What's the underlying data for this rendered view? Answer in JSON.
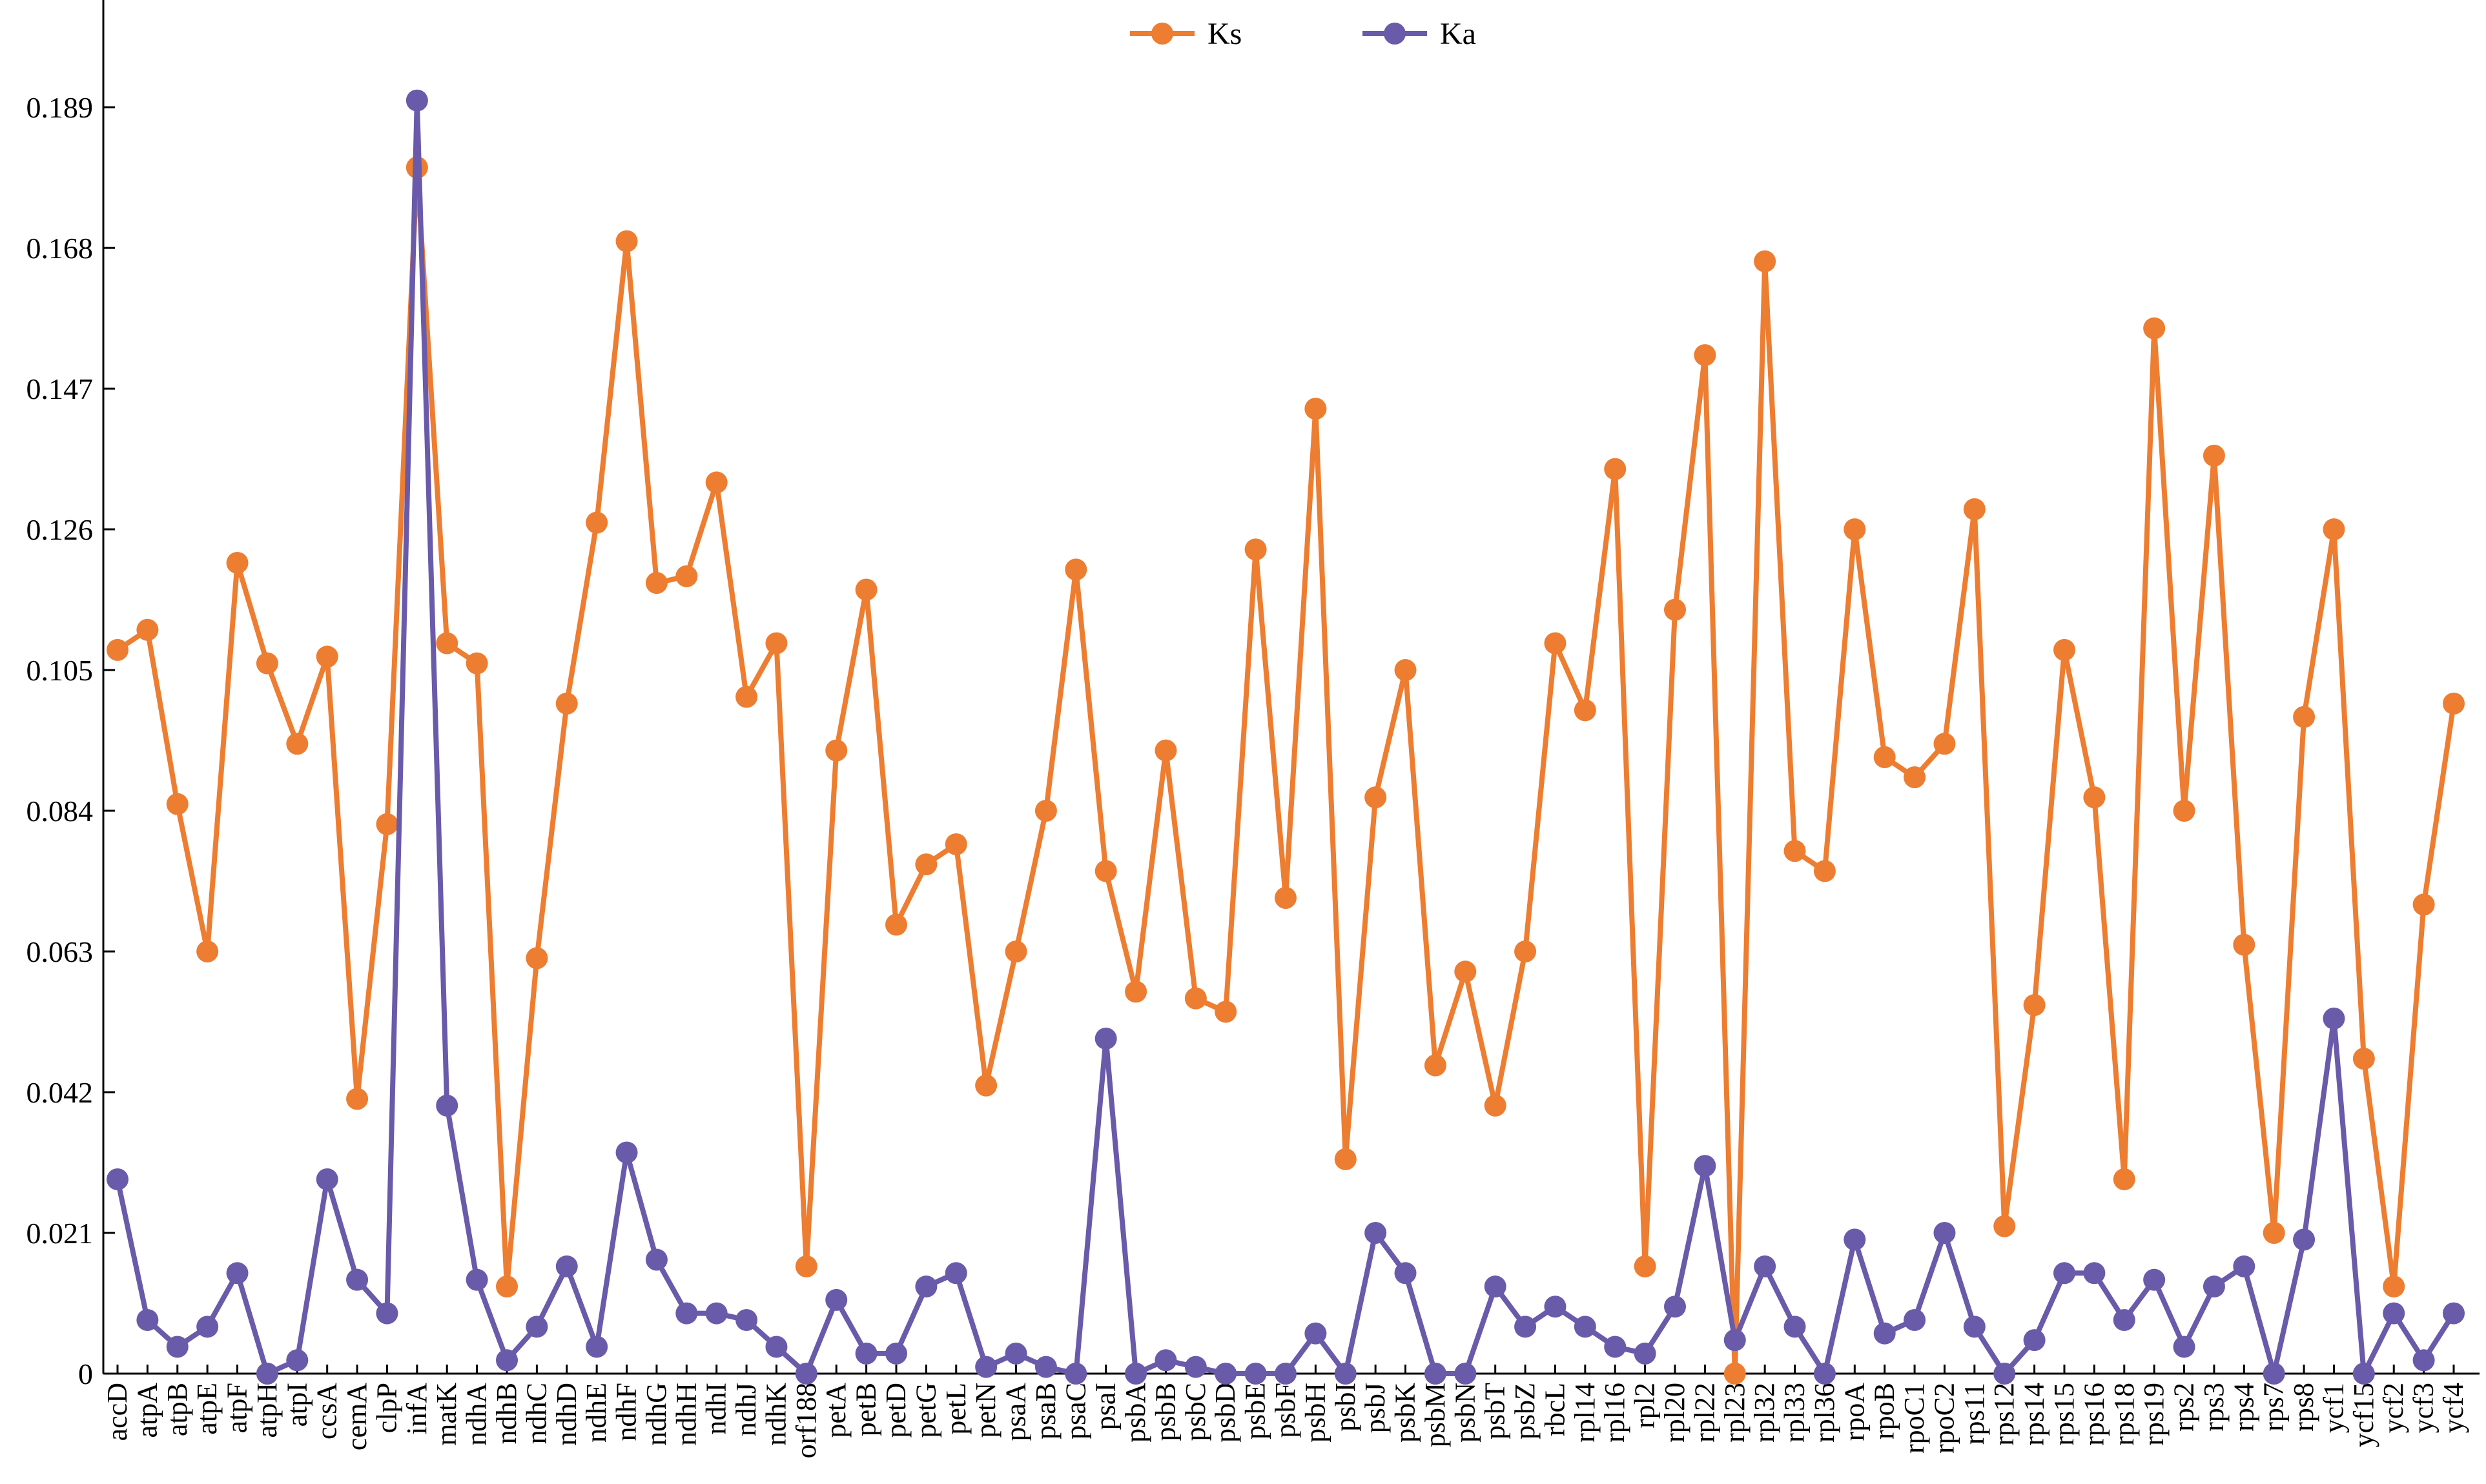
{
  "chart_data": {
    "type": "line",
    "title": "",
    "xlabel": "",
    "ylabel": "",
    "ylim": [
      0,
      0.205
    ],
    "yticks": [
      0,
      0.021,
      0.042,
      0.063,
      0.084,
      0.105,
      0.126,
      0.147,
      0.168,
      0.189
    ],
    "ytick_labels": [
      "0",
      "0.021",
      "0.042",
      "0.063",
      "0.084",
      "0.105",
      "0.126",
      "0.147",
      "0.168",
      "0.189"
    ],
    "legend_position": "top-center",
    "categories": [
      "accD",
      "atpA",
      "atpB",
      "atpE",
      "atpF",
      "atpH",
      "atpI",
      "ccsA",
      "cemA",
      "clpP",
      "infA",
      "matK",
      "ndhA",
      "ndhB",
      "ndhC",
      "ndhD",
      "ndhE",
      "ndhF",
      "ndhG",
      "ndhH",
      "ndhI",
      "ndhJ",
      "ndhK",
      "orf188",
      "petA",
      "petB",
      "petD",
      "petG",
      "petL",
      "petN",
      "psaA",
      "psaB",
      "psaC",
      "psaI",
      "psbA",
      "psbB",
      "psbC",
      "psbD",
      "psbE",
      "psbF",
      "psbH",
      "psbI",
      "psbJ",
      "psbK",
      "psbM",
      "psbN",
      "psbT",
      "psbZ",
      "rbcL",
      "rpl14",
      "rpl16",
      "rpl2",
      "rpl20",
      "rpl22",
      "rpl23",
      "rpl32",
      "rpl33",
      "rpl36",
      "rpoA",
      "rpoB",
      "rpoC1",
      "rpoC2",
      "rps11",
      "rps12",
      "rps14",
      "rps15",
      "rps16",
      "rps18",
      "rps19",
      "rps2",
      "rps3",
      "rps4",
      "rps7",
      "rps8",
      "ycf1",
      "ycf15",
      "ycf2",
      "ycf3",
      "ycf4"
    ],
    "series": [
      {
        "name": "Ks",
        "color": "#ED7D31",
        "values": [
          0.108,
          0.111,
          0.085,
          0.063,
          0.121,
          0.106,
          0.094,
          0.107,
          0.041,
          0.082,
          0.18,
          0.109,
          0.106,
          0.013,
          0.062,
          0.1,
          0.127,
          0.169,
          0.118,
          0.119,
          0.133,
          0.101,
          0.109,
          0.016,
          0.093,
          0.117,
          0.067,
          0.076,
          0.079,
          0.043,
          0.063,
          0.084,
          0.12,
          0.075,
          0.057,
          0.093,
          0.056,
          0.054,
          0.123,
          0.071,
          0.144,
          0.032,
          0.086,
          0.105,
          0.046,
          0.06,
          0.04,
          0.063,
          0.109,
          0.099,
          0.135,
          0.016,
          0.114,
          0.152,
          0.0,
          0.166,
          0.078,
          0.075,
          0.126,
          0.092,
          0.089,
          0.094,
          0.129,
          0.022,
          0.055,
          0.108,
          0.086,
          0.029,
          0.156,
          0.084,
          0.137,
          0.064,
          0.021,
          0.098,
          0.126,
          0.047,
          0.013,
          0.07,
          0.1
        ]
      },
      {
        "name": "Ka",
        "color": "#6A5AAA",
        "values": [
          0.029,
          0.008,
          0.004,
          0.007,
          0.015,
          0.0,
          0.002,
          0.029,
          0.014,
          0.009,
          0.19,
          0.04,
          0.014,
          0.002,
          0.007,
          0.016,
          0.004,
          0.033,
          0.017,
          0.009,
          0.009,
          0.008,
          0.004,
          0.0,
          0.011,
          0.003,
          0.003,
          0.013,
          0.015,
          0.001,
          0.003,
          0.001,
          0.0,
          0.05,
          0.0,
          0.002,
          0.001,
          0.0,
          0.0,
          0.0,
          0.006,
          0.0,
          0.021,
          0.015,
          0.0,
          0.0,
          0.013,
          0.007,
          0.01,
          0.007,
          0.004,
          0.003,
          0.01,
          0.031,
          0.005,
          0.016,
          0.007,
          0.0,
          0.02,
          0.006,
          0.008,
          0.021,
          0.007,
          0.0,
          0.005,
          0.015,
          0.015,
          0.008,
          0.014,
          0.004,
          0.013,
          0.016,
          0.0,
          0.02,
          0.053,
          0.0,
          0.009,
          0.002,
          0.009
        ]
      }
    ]
  }
}
